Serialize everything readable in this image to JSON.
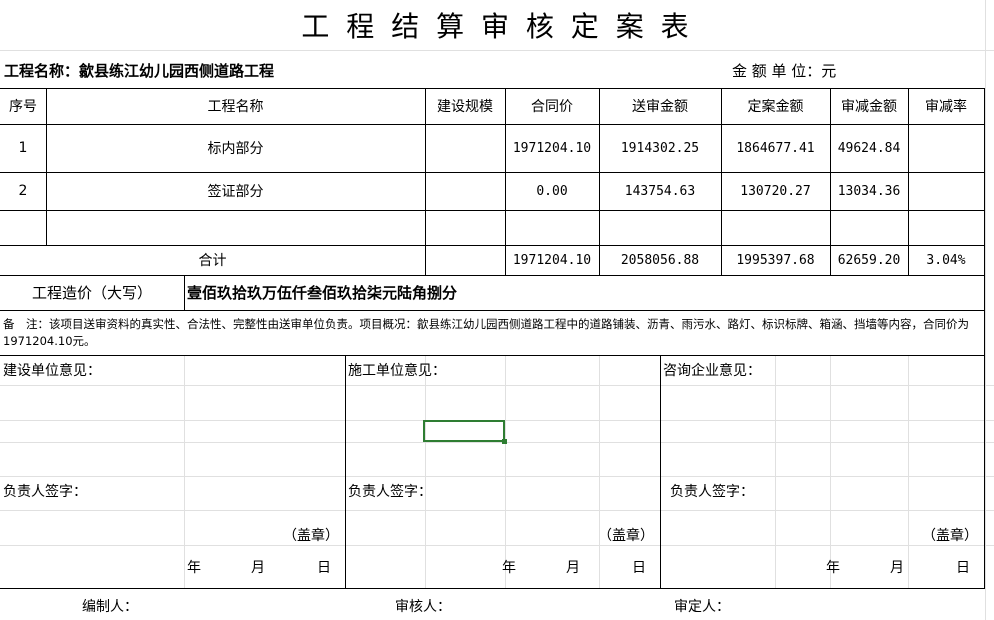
{
  "title": "工 程 结 算 审 核 定 案 表",
  "project_label": "工程名称：歙县练江幼儿园西侧道路工程",
  "unit_label": "金 额 单 位：元",
  "headers": [
    "序号",
    "工程名称",
    "建设规模",
    "合同价",
    "送审金额",
    "定案金额",
    "审减金额",
    "审减率"
  ],
  "rows": [
    [
      "1",
      "标内部分",
      "",
      "1971204.10",
      "1914302.25",
      "1864677.41",
      "49624.84",
      ""
    ],
    [
      "2",
      "签证部分",
      "",
      "0.00",
      "143754.63",
      "130720.27",
      "13034.36",
      ""
    ],
    [
      "",
      "",
      "",
      "",
      "",
      "",
      "",
      ""
    ]
  ],
  "total": {
    "label": "合计",
    "values": [
      "",
      "1971204.10",
      "2058056.88",
      "1995397.68",
      "62659.20",
      "3.04%"
    ]
  },
  "capital": {
    "label": "工程造价（大写）",
    "value": "壹佰玖拾玖万伍仟叁佰玖拾柒元陆角捌分"
  },
  "note": "备　注：该项目送审资料的真实性、合法性、完整性由送审单位负责。项目概况：歙县练江幼儿园西侧道路工程中的道路铺装、沥青、雨污水、路灯、标识标牌、箱涵、挡墙等内容，合同价为1971204.10元。",
  "opinions": [
    {
      "title": "建设单位意见：",
      "sign": "负责人签字：",
      "seal": "（盖章）",
      "year": "年",
      "month": "月",
      "day": "日"
    },
    {
      "title": "施工单位意见：",
      "sign": "负责人签字：",
      "seal": "（盖章）",
      "year": "年",
      "month": "月",
      "day": "日"
    },
    {
      "title": "咨询企业意见：",
      "sign": "负责人签字：",
      "seal": "（盖章）",
      "year": "年",
      "month": "月",
      "day": "日"
    }
  ],
  "footer": [
    "编制人：",
    "审核人：",
    "审定人："
  ],
  "colors": {
    "selection": "#2e7d32"
  }
}
